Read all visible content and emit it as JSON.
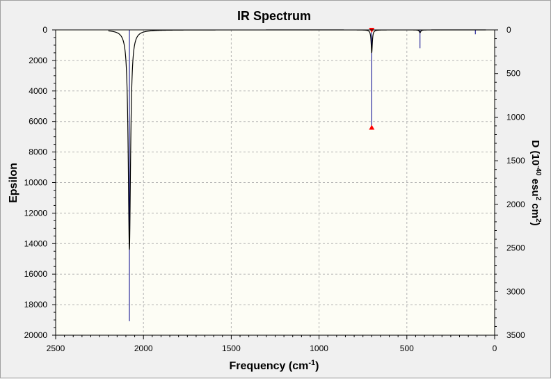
{
  "chart_data": {
    "type": "line",
    "title": "IR Spectrum",
    "xlabel": "Frequency (cm-1)",
    "xlabel_main": "Frequency (cm",
    "xlabel_sup": "-1",
    "xlabel_close": ")",
    "ylabel": "Epsilon",
    "y2label": "D (10-40 esu2 cm2)",
    "y2label_parts": {
      "a": "D (10",
      "b": "-40",
      "c": " esu",
      "d": "2",
      "e": " cm",
      "f": "2",
      "g": ")"
    },
    "xlim": [
      2500,
      0
    ],
    "ylim": [
      0,
      20000
    ],
    "y2lim": [
      0,
      3500
    ],
    "xticks": [
      "2500",
      "2000",
      "1500",
      "1000",
      "500",
      "0"
    ],
    "yticks": [
      "0",
      "2000",
      "4000",
      "6000",
      "8000",
      "10000",
      "12000",
      "14000",
      "16000",
      "18000",
      "20000"
    ],
    "y2ticks": [
      "0",
      "500",
      "1000",
      "1500",
      "2000",
      "2500",
      "3000",
      "3500"
    ],
    "grid": true,
    "spectrum_range": [
      2200,
      50
    ],
    "peaks": [
      {
        "freq": 2080,
        "epsilon": 14400,
        "width": 8
      },
      {
        "freq": 700,
        "epsilon": 1500,
        "width": 4
      },
      {
        "freq": 425,
        "epsilon": 180,
        "width": 5
      }
    ],
    "sticks": [
      {
        "freq": 2080,
        "intensity": 3340
      },
      {
        "freq": 700,
        "intensity": 1120
      },
      {
        "freq": 425,
        "intensity": 210
      },
      {
        "freq": 110,
        "intensity": 50
      }
    ],
    "markers": [
      {
        "freq": 700,
        "intensity": 0,
        "shape": "down"
      },
      {
        "freq": 700,
        "intensity": 1120,
        "shape": "up"
      }
    ],
    "colors": {
      "plot_bg": "#fdfdf5",
      "spectrum": "#000000",
      "stick": "#00008b",
      "marker": "#ff0000",
      "grid": "#b4b4b4"
    }
  }
}
